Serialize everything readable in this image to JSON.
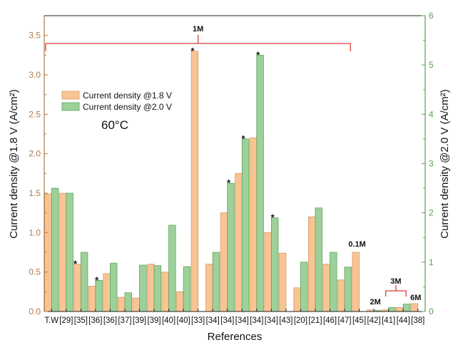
{
  "chart_data": {
    "type": "bar",
    "xlabel": "References",
    "ylabel_left": "Current density @1.8 V (A/cm²)",
    "ylabel_right": "Current density @2.0 V (A/cm²)",
    "ylim_left": [
      0,
      3.75
    ],
    "ylim_right": [
      0,
      6
    ],
    "yticks_left": [
      "0.0",
      "0.5",
      "1.0",
      "1.5",
      "2.0",
      "2.5",
      "3.0",
      "3.5"
    ],
    "yticks_right": [
      "0",
      "1",
      "2",
      "3",
      "4",
      "5",
      "6"
    ],
    "grid": false,
    "legend_position": "top-left",
    "categories": [
      "T.W",
      "[29]",
      "[35]",
      "[36]",
      "[36]",
      "[37]",
      "[39]",
      "[39]",
      "[40]",
      "[40]",
      "[33]",
      "[34]",
      "[34]",
      "[34]",
      "[34]",
      "[34]",
      "[43]",
      "[20]",
      "[21]",
      "[46]",
      "[47]",
      "[45]",
      "[42]",
      "[41]",
      "[44]",
      "[38]"
    ],
    "series": [
      {
        "name": "Current density @1.8 V",
        "axis": "left",
        "color": "#f9c493",
        "values": [
          1.49,
          1.5,
          0.6,
          0.32,
          0.48,
          0.18,
          0.17,
          0.6,
          0.5,
          0.25,
          3.3,
          0.6,
          1.25,
          1.75,
          2.2,
          1.0,
          0.74,
          0.3,
          1.2,
          0.6,
          0.4,
          0.75,
          0.02,
          0.02,
          0.05,
          0.1
        ]
      },
      {
        "name": "Current density @2.0 V",
        "axis": "right",
        "color": "#9ed09a",
        "values": [
          2.5,
          2.4,
          1.2,
          0.63,
          0.98,
          0.38,
          0.94,
          0.93,
          1.75,
          0.91,
          null,
          1.2,
          2.6,
          3.5,
          5.2,
          1.9,
          null,
          1.0,
          2.1,
          1.2,
          0.9,
          null,
          0.02,
          0.08,
          0.15,
          null
        ]
      }
    ],
    "star_marks": [
      {
        "index": 2,
        "series": 0
      },
      {
        "index": 3,
        "series": 1
      },
      {
        "index": 10,
        "series": 0
      },
      {
        "index": 12,
        "series": 1
      },
      {
        "index": 13,
        "series": 1
      },
      {
        "index": 14,
        "series": 1
      },
      {
        "index": 15,
        "series": 1
      }
    ],
    "annotations": {
      "bracket_1m": {
        "label": "1M",
        "from_index": 0,
        "to_index": 20
      },
      "label_01m": {
        "label": "0.1M",
        "index": 21
      },
      "label_2m": {
        "label": "2M",
        "index": 22
      },
      "bracket_3m": {
        "label": "3M",
        "from_index": 23,
        "to_index": 24
      },
      "label_6m": {
        "label": "6M",
        "index": 25
      }
    },
    "temperature_label": "60°C",
    "colors": {
      "left_axis": "#b07a4a",
      "right_axis": "#58a04e",
      "bracket": "#e03a3a",
      "bar_edge_left": "#d49a63",
      "bar_edge_right": "#5fa35a"
    }
  }
}
